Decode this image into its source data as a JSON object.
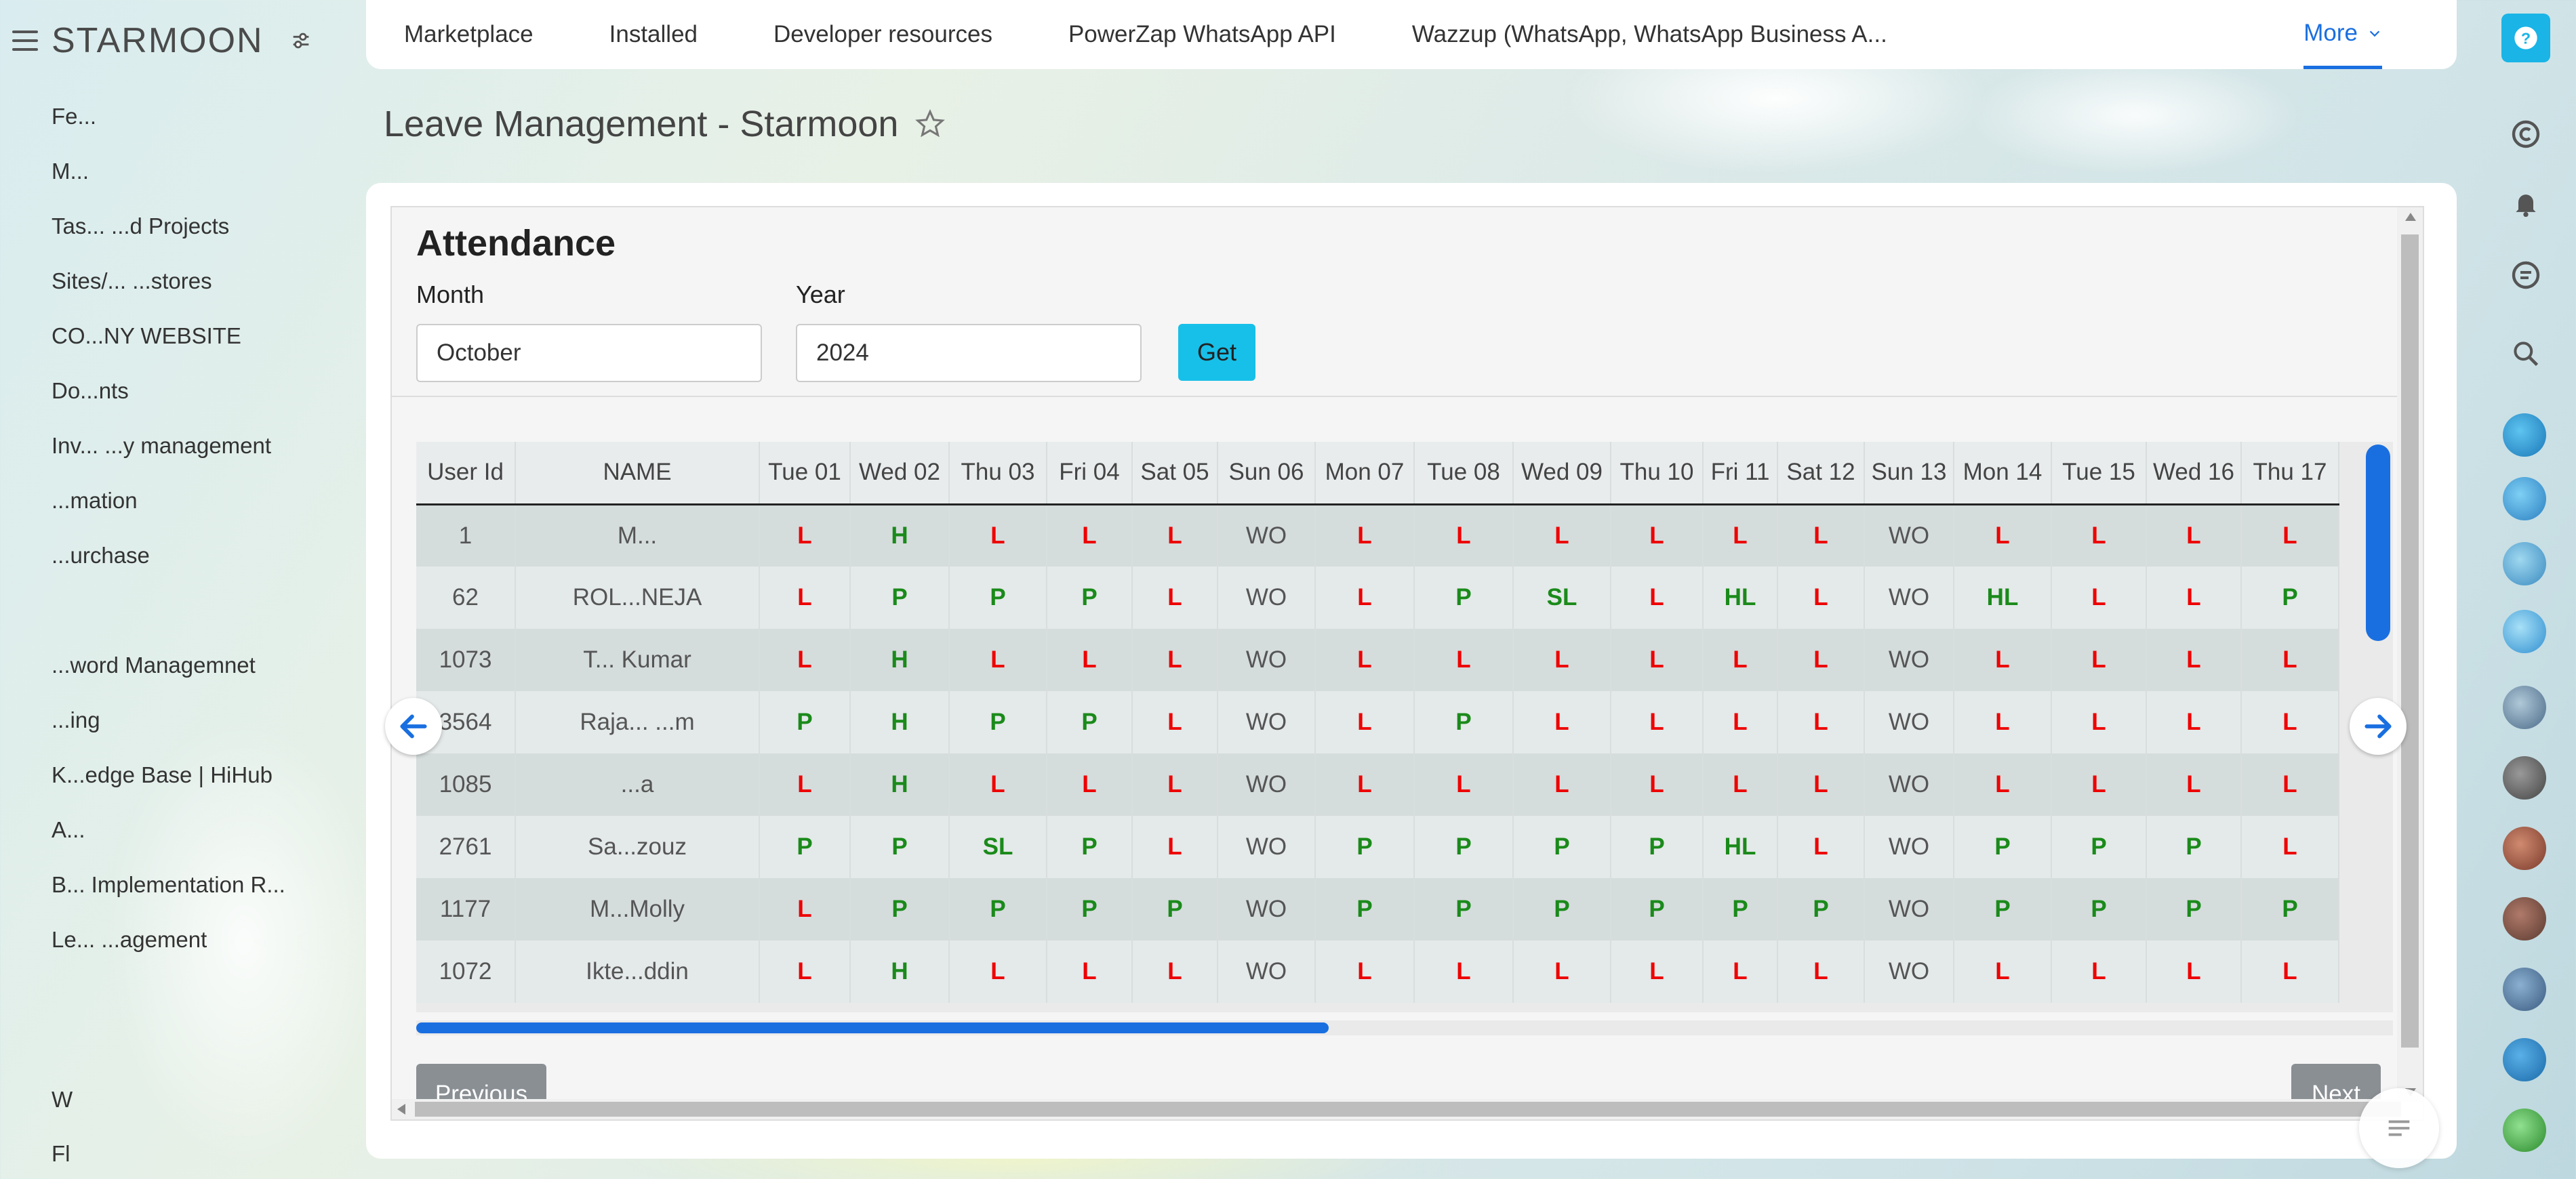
{
  "sidebar": {
    "brand": "STARMOON",
    "items": [
      {
        "label": "Fe..."
      },
      {
        "label": "M..."
      },
      {
        "label": "Tas... ...d Projects"
      },
      {
        "label": "Sites/... ...stores"
      },
      {
        "label": "CO...NY WEBSITE"
      },
      {
        "label": "Do...nts"
      },
      {
        "label": "Inv... ...y management"
      },
      {
        "label": "...mation"
      },
      {
        "label": "...urchase"
      },
      {
        "label": ""
      },
      {
        "label": "...word Managemnet"
      },
      {
        "label": "...ing"
      },
      {
        "label": "K...edge Base | HiHub"
      },
      {
        "label": "A..."
      },
      {
        "label": "B... Implementation R..."
      },
      {
        "label": "Le... ...agement"
      }
    ],
    "bottom_items": [
      {
        "label": "W"
      },
      {
        "label": "Fl"
      }
    ]
  },
  "topnav": {
    "links": [
      "Marketplace",
      "Installed",
      "Developer resources",
      "PowerZap WhatsApp API",
      "Wazzup (WhatsApp, WhatsApp Business A..."
    ],
    "more": "More"
  },
  "page": {
    "title": "Leave Management - Starmoon"
  },
  "attendance": {
    "title": "Attendance",
    "month_label": "Month",
    "month_value": "October",
    "year_label": "Year",
    "year_value": "2024",
    "get_button": "Get",
    "previous": "Previous",
    "next": "Next",
    "columns": [
      "User Id",
      "NAME",
      "Tue 01",
      "Wed 02",
      "Thu 03",
      "Fri 04",
      "Sat 05",
      "Sun 06",
      "Mon 07",
      "Tue 08",
      "Wed 09",
      "Thu 10",
      "Fri 11",
      "Sat 12",
      "Sun 13",
      "Mon 14",
      "Tue 15",
      "Wed 16",
      "Thu 17"
    ],
    "rows": [
      {
        "id": "1",
        "name": "M...",
        "days": [
          "L",
          "H",
          "L",
          "L",
          "L",
          "WO",
          "L",
          "L",
          "L",
          "L",
          "L",
          "L",
          "WO",
          "L",
          "L",
          "L",
          "L"
        ]
      },
      {
        "id": "62",
        "name": "ROL...NEJA",
        "days": [
          "L",
          "P",
          "P",
          "P",
          "L",
          "WO",
          "L",
          "P",
          "SL",
          "L",
          "HL",
          "L",
          "WO",
          "HL",
          "L",
          "L",
          "P"
        ]
      },
      {
        "id": "1073",
        "name": "T... Kumar",
        "days": [
          "L",
          "H",
          "L",
          "L",
          "L",
          "WO",
          "L",
          "L",
          "L",
          "L",
          "L",
          "L",
          "WO",
          "L",
          "L",
          "L",
          "L"
        ]
      },
      {
        "id": "3564",
        "name": "Raja... ...m",
        "days": [
          "P",
          "H",
          "P",
          "P",
          "L",
          "WO",
          "L",
          "P",
          "L",
          "L",
          "L",
          "L",
          "WO",
          "L",
          "L",
          "L",
          "L"
        ]
      },
      {
        "id": "1085",
        "name": "...a",
        "days": [
          "L",
          "H",
          "L",
          "L",
          "L",
          "WO",
          "L",
          "L",
          "L",
          "L",
          "L",
          "L",
          "WO",
          "L",
          "L",
          "L",
          "L"
        ]
      },
      {
        "id": "2761",
        "name": "Sa...zouz",
        "days": [
          "P",
          "P",
          "SL",
          "P",
          "L",
          "WO",
          "P",
          "P",
          "P",
          "P",
          "HL",
          "L",
          "WO",
          "P",
          "P",
          "P",
          "L"
        ]
      },
      {
        "id": "1177",
        "name": "M...Molly",
        "days": [
          "L",
          "P",
          "P",
          "P",
          "P",
          "WO",
          "P",
          "P",
          "P",
          "P",
          "P",
          "P",
          "WO",
          "P",
          "P",
          "P",
          "P"
        ]
      },
      {
        "id": "1072",
        "name": "Ikte...ddin",
        "days": [
          "L",
          "H",
          "L",
          "L",
          "L",
          "WO",
          "L",
          "L",
          "L",
          "L",
          "L",
          "L",
          "WO",
          "L",
          "L",
          "L",
          "L"
        ]
      }
    ]
  },
  "colors": {
    "accent": "#1a6fe0",
    "get_button": "#17c0e8",
    "status_red": "#e00000",
    "status_green": "#1a8a1a",
    "pager_button": "#8a8f94"
  },
  "icons": {
    "hamburger": "hamburger-icon",
    "settings": "sliders-icon",
    "star": "star-icon",
    "help": "help-icon",
    "copyright": "copyright-icon",
    "bell": "bell-icon",
    "chat": "chat-icon",
    "search": "search-icon",
    "arrow_left": "arrow-left-icon",
    "arrow_right": "arrow-right-icon",
    "menu_lines": "menu-lines-icon"
  }
}
